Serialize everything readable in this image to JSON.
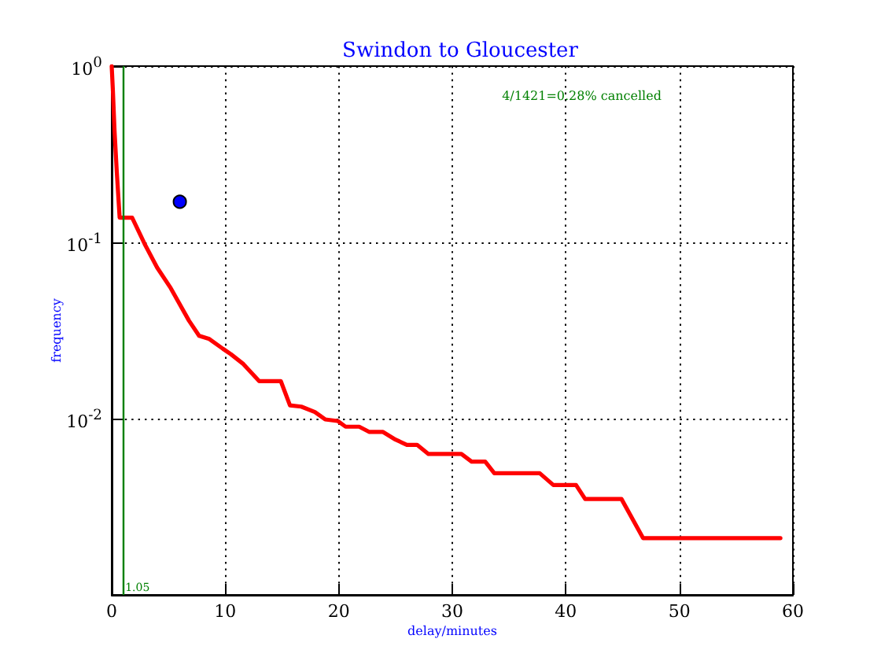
{
  "chart_data": {
    "type": "line",
    "title": "Swindon to Gloucester",
    "xlabel": "delay/minutes",
    "ylabel": "frequency",
    "annotations": [
      "4/1421=0.28% cancelled"
    ],
    "xlim": [
      0,
      60
    ],
    "xticks": [
      0,
      10,
      20,
      30,
      40,
      50,
      60
    ],
    "ylim": [
      0.001,
      1
    ],
    "yticks": [
      {
        "value": 1,
        "label": "10$^{0}$"
      },
      {
        "value": 0.1,
        "label": "10$^{-1}$"
      },
      {
        "value": 0.01,
        "label": "10$^{-2}$"
      },
      {
        "value": 0.001,
        "label": null
      }
    ],
    "log": "y",
    "grid": true,
    "ref_lines": [
      {
        "axis": "x",
        "value": 1.05,
        "label": "1.05",
        "color": "#008000"
      }
    ],
    "series": [
      {
        "color": "#ff0000",
        "x": [
          0,
          0.1,
          0.25,
          0.45,
          0.7,
          1.8,
          2.9,
          4.0,
          5.2,
          6.8,
          7.7,
          8.6,
          9.8,
          10.5,
          11.6,
          13.0,
          14.9,
          15.7,
          16.7,
          17.9,
          18.8,
          19.9,
          20.6,
          21.8,
          22.7,
          23.9,
          25.0,
          26.0,
          26.9,
          27.9,
          30.8,
          31.7,
          32.9,
          33.7,
          37.7,
          38.9,
          40.9,
          41.7,
          44.9,
          46.8,
          58.9
        ],
        "values": [
          1.0,
          0.74,
          0.43,
          0.25,
          0.138,
          0.138,
          0.098,
          0.072,
          0.055,
          0.036,
          0.0295,
          0.0283,
          0.0249,
          0.0232,
          0.0204,
          0.0163,
          0.0163,
          0.0119,
          0.0117,
          0.0109,
          0.0099,
          0.0097,
          0.009,
          0.009,
          0.0084,
          0.0084,
          0.0076,
          0.0071,
          0.0071,
          0.0063,
          0.0063,
          0.0057,
          0.0057,
          0.0049,
          0.0049,
          0.0042,
          0.0042,
          0.0035,
          0.0035,
          0.0021,
          0.0021
        ]
      },
      {
        "type": "scatter",
        "color": "#0000ff",
        "marker": "circle",
        "x": [
          6
        ],
        "values": [
          0.17
        ]
      }
    ]
  }
}
